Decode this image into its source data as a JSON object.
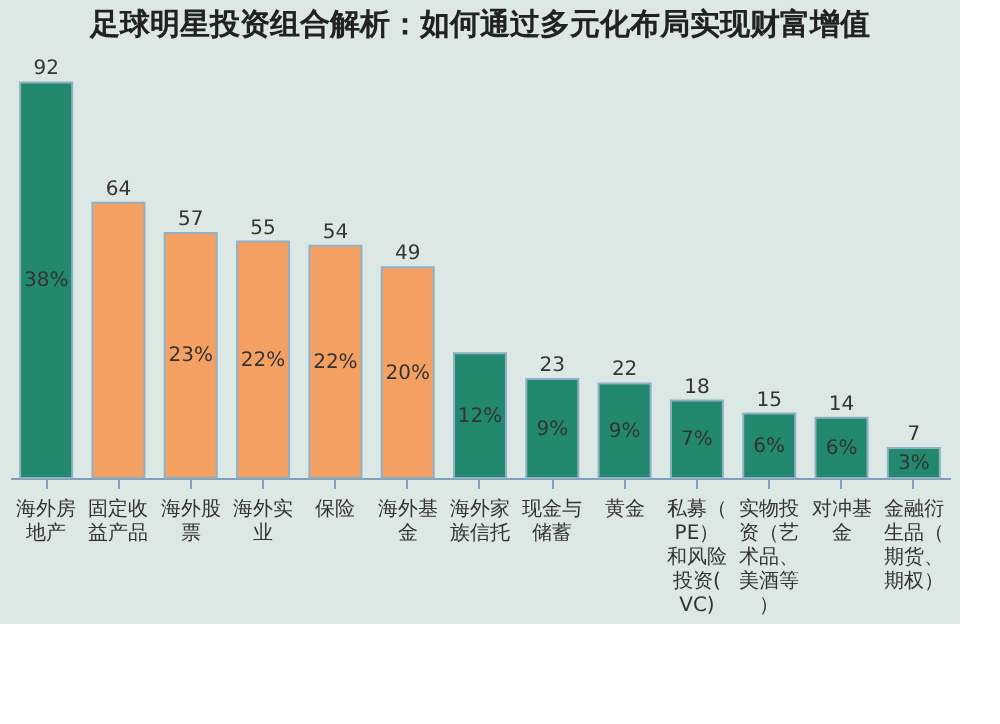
{
  "chart_data": {
    "type": "bar",
    "title": "足球明星投资组合解析：如何通过多元化布局实现财富增值",
    "categories": [
      "海外房地产",
      "固定收益产品",
      "海外股票",
      "海外实业",
      "保险",
      "海外基金",
      "海外家族信托",
      "现金与储蓄",
      "黄金",
      "私募（PE）和风险投资(VC)",
      "实物投资（艺术品、美酒等）",
      "对冲基金",
      "金融衍生品（期货、期权）"
    ],
    "values": [
      92,
      64,
      57,
      55,
      54,
      49,
      29,
      23,
      22,
      18,
      15,
      14,
      7
    ],
    "value_labels": [
      "92",
      "64",
      "57",
      "55",
      "54",
      "49",
      null,
      "23",
      "22",
      "18",
      "15",
      "14",
      "7"
    ],
    "colors": [
      "#22896e",
      "#f4a062",
      "#f4a062",
      "#f4a062",
      "#f4a062",
      "#f4a062",
      "#22896e",
      "#22896e",
      "#22896e",
      "#22896e",
      "#22896e",
      "#22896e",
      "#22896e"
    ],
    "annotations": [
      "38%",
      "23%",
      "22%",
      "22%",
      "20%",
      "12%",
      "9%",
      "9%",
      "7%",
      "6%",
      "6%",
      "3%"
    ],
    "grid": false
  }
}
